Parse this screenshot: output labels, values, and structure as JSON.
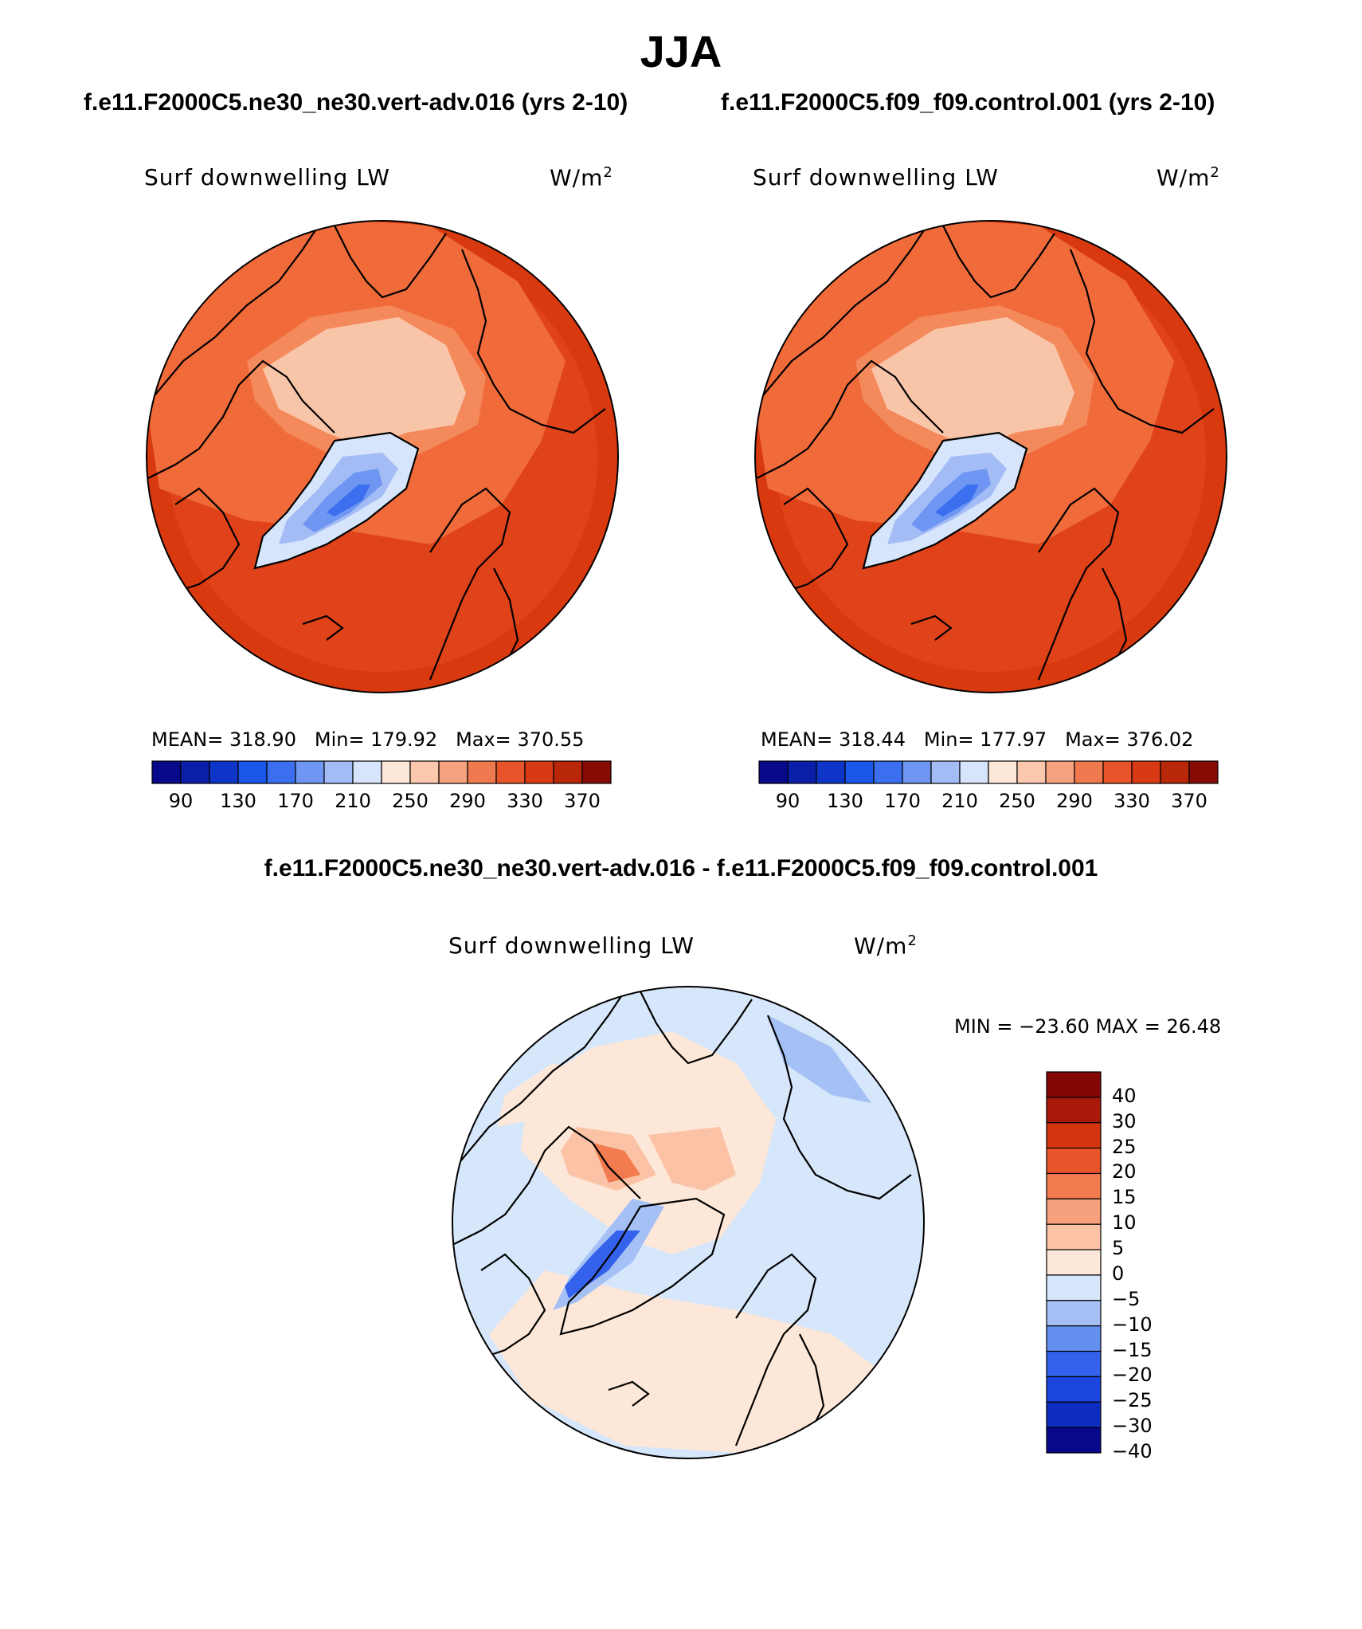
{
  "figure": {
    "season": "JJA",
    "case_title": "f.e11.F2000C5.ne30_ne30.vert-adv.016 (yrs 2-10)",
    "control_title": "f.e11.F2000C5.f09_f09.control.001 (yrs 2-10)",
    "diff_title": "f.e11.F2000C5.ne30_ne30.vert-adv.016 - f.e11.F2000C5.f09_f09.control.001"
  },
  "panels": {
    "case": {
      "variable": "Surf downwelling LW",
      "units": "W/m",
      "units_sup": "2",
      "mean_label": "MEAN= 318.90",
      "min_label": "Min= 179.92",
      "max_label": "Max= 370.55"
    },
    "control": {
      "variable": "Surf downwelling LW",
      "units": "W/m",
      "units_sup": "2",
      "mean_label": "MEAN= 318.44",
      "min_label": "Min= 177.97",
      "max_label": "Max= 376.02"
    },
    "diff": {
      "variable": "Surf downwelling LW",
      "units": "W/m",
      "units_sup": "2",
      "minmax_label": "MIN = −23.60 MAX =  26.48"
    }
  },
  "colorbars": {
    "abs_colors": [
      "#08088a",
      "#0a1fa8",
      "#0d36c8",
      "#1a56e8",
      "#3b6ff0",
      "#6e96f2",
      "#a4bcf5",
      "#d6e5fb",
      "#fde7d9",
      "#fbc7ad",
      "#f6a27f",
      "#f07a50",
      "#e8542a",
      "#d83a14",
      "#b82708",
      "#870b04"
    ],
    "abs_ticks": [
      "90",
      "130",
      "170",
      "210",
      "250",
      "290",
      "330",
      "370"
    ],
    "diff_colors": [
      "#08088a",
      "#0d2cc0",
      "#1c45e0",
      "#3462ec",
      "#6390f0",
      "#a4c0f5",
      "#d6e6fb",
      "#fde7d9",
      "#fbc2a6",
      "#f6a07d",
      "#f27b4f",
      "#e8552b",
      "#d23510",
      "#a8190a",
      "#820705"
    ],
    "diff_ticks": [
      "40",
      "30",
      "25",
      "20",
      "15",
      "10",
      "5",
      "0",
      "−5",
      "−10",
      "−15",
      "−20",
      "−25",
      "−30",
      "−40"
    ]
  },
  "map_fills": {
    "abs_ocean": "#e0431a",
    "abs_midlat": "#d8390f",
    "abs_landbelt": "#f06a3a",
    "abs_arctic": "#f9c5a8",
    "abs_greenland": "#6e96f2",
    "abs_greenland_core": "#3b6ff0",
    "diff_base": "#d6e6fb",
    "diff_pos": "#fde7d9",
    "diff_pos2": "#fbc2a6",
    "diff_neg": "#a4c0f5",
    "diff_neg2": "#3462ec"
  }
}
